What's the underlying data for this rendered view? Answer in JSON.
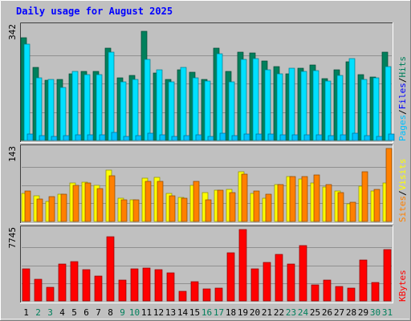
{
  "chart_data": {
    "type": "bar",
    "title": "Daily usage for August 2025",
    "colors": {
      "background": "#C0C0C0",
      "title": "#0000FF",
      "hits": "#00805C",
      "files": "#00E0FF",
      "pages": "#00C0FF",
      "visits": "#FFFF00",
      "sites": "#FF8000",
      "kbytes": "#FF0000",
      "weekday_label": "#000000",
      "weekend_label": "#00805C"
    },
    "days": [
      "1",
      "2",
      "3",
      "4",
      "5",
      "6",
      "7",
      "8",
      "9",
      "10",
      "11",
      "12",
      "13",
      "14",
      "15",
      "16",
      "17",
      "18",
      "19",
      "20",
      "21",
      "22",
      "23",
      "24",
      "25",
      "26",
      "27",
      "28",
      "29",
      "30",
      "31"
    ],
    "weekend_days": [
      2,
      3,
      9,
      10,
      16,
      17,
      23,
      24,
      30,
      31
    ],
    "panels": [
      {
        "id": "hits_files_pages",
        "max_label": "342",
        "ymax": 342,
        "legend": [
          "Pages",
          "/",
          "Files",
          "/",
          "Hits"
        ],
        "legend_colors": [
          "#00C0FF",
          "#000000",
          "#0000FF",
          "#000000",
          "#00805C"
        ],
        "series": [
          {
            "name": "Hits",
            "color": "#00805C",
            "values": [
              309,
              219,
              181,
              183,
              201,
              208,
              208,
              277,
              188,
              196,
              328,
              203,
              182,
              212,
              204,
              183,
              276,
              208,
              264,
              262,
              238,
              221,
              200,
              216,
              226,
              186,
              213,
              236,
              198,
              190,
              266
            ]
          },
          {
            "name": "Files",
            "color": "#00E0FF",
            "values": [
              290,
              188,
              182,
              159,
              208,
              198,
              197,
              266,
              177,
              184,
              244,
              211,
              175,
              220,
              188,
              178,
              260,
              175,
              244,
              245,
              212,
              200,
              217,
              207,
              210,
              178,
              196,
              246,
              183,
              188,
              221
            ]
          },
          {
            "name": "Pages",
            "color": "#00C0FF",
            "values": [
              20,
              15,
              12,
              14,
              18,
              18,
              16,
              24,
              13,
              14,
              22,
              17,
              12,
              15,
              16,
              12,
              22,
              14,
              20,
              20,
              19,
              17,
              18,
              18,
              18,
              14,
              16,
              21,
              14,
              13,
              20
            ]
          }
        ]
      },
      {
        "id": "visits_sites",
        "max_label": "143",
        "ymax": 143,
        "legend": [
          "Sites",
          "/",
          "Visits"
        ],
        "legend_colors": [
          "#FF8000",
          "#000000",
          "#FFFF00"
        ],
        "series": [
          {
            "name": "Visits",
            "color": "#FFFF00",
            "values": [
              55,
              50,
              40,
              54,
              75,
              77,
              70,
              100,
              46,
              43,
              85,
              87,
              55,
              47,
              70,
              56,
              62,
              63,
              98,
              55,
              45,
              73,
              88,
              83,
              76,
              68,
              60,
              35,
              69,
              59,
              75
            ]
          },
          {
            "name": "Sites",
            "color": "#FF8000",
            "values": [
              60,
              44,
              48,
              54,
              70,
              76,
              65,
              90,
              42,
              42,
              79,
              78,
              51,
              45,
              78,
              42,
              61,
              56,
              93,
              60,
              53,
              73,
              88,
              88,
              91,
              73,
              56,
              38,
              98,
              63,
              143
            ]
          }
        ]
      },
      {
        "id": "kbytes",
        "max_label": "7745",
        "ymax": 7745,
        "legend": [
          "KBytes"
        ],
        "legend_colors": [
          "#FF0000"
        ],
        "series": [
          {
            "name": "KBytes",
            "color": "#FF0000",
            "values": [
              3500,
              2360,
              1460,
              4040,
              4240,
              3360,
              2700,
              7000,
              2260,
              3500,
              3550,
              3400,
              3080,
              1080,
              2130,
              1330,
              1420,
              5200,
              7745,
              3480,
              4140,
              5050,
              4040,
              6020,
              1760,
              2300,
              1550,
              1380,
              4430,
              1980,
              5600
            ]
          }
        ]
      }
    ]
  }
}
